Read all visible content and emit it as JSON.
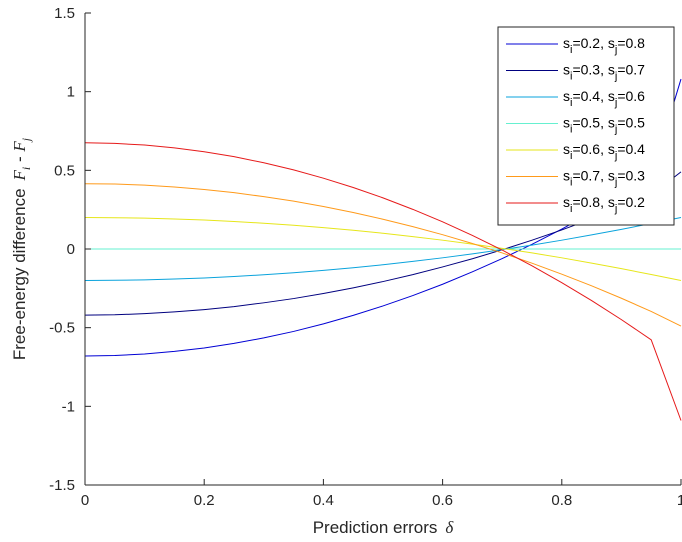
{
  "chart_data": {
    "type": "line",
    "title": "",
    "xlabel": "Prediction errors",
    "xlabel_symbol": "δ",
    "ylabel": "Free-energy difference",
    "ylabel_symbol_i": "F",
    "ylabel_sub_i": "i",
    "ylabel_minus": " - ",
    "ylabel_symbol_j": "F",
    "ylabel_sub_j": "j",
    "xlim": [
      0,
      1
    ],
    "ylim": [
      -1.5,
      1.5
    ],
    "xticks": [
      {
        "value": 0,
        "label": "0"
      },
      {
        "value": 0.2,
        "label": "0.2"
      },
      {
        "value": 0.4,
        "label": "0.4"
      },
      {
        "value": 0.6,
        "label": "0.6"
      },
      {
        "value": 0.8,
        "label": "0.8"
      },
      {
        "value": 1,
        "label": "1"
      }
    ],
    "yticks": [
      {
        "value": -1.5,
        "label": "-1.5"
      },
      {
        "value": -1,
        "label": "-1"
      },
      {
        "value": -0.5,
        "label": "-0.5"
      },
      {
        "value": 0,
        "label": "0"
      },
      {
        "value": 0.5,
        "label": "0.5"
      },
      {
        "value": 1,
        "label": "1"
      },
      {
        "value": 1.5,
        "label": "1.5"
      }
    ],
    "grid": false,
    "legend_position": "top-right",
    "x": [
      0,
      0.05,
      0.1,
      0.15,
      0.2,
      0.25,
      0.3,
      0.35,
      0.4,
      0.45,
      0.5,
      0.55,
      0.6,
      0.65,
      0.7,
      0.75,
      0.8,
      0.85,
      0.9,
      0.95,
      1
    ],
    "series": [
      {
        "name_parts": [
          "s",
          "i",
          "=0.2, s",
          "j",
          "=0.8"
        ],
        "color": "#0000d4",
        "values": [
          -0.68,
          -0.677,
          -0.667,
          -0.651,
          -0.629,
          -0.6,
          -0.565,
          -0.524,
          -0.476,
          -0.422,
          -0.362,
          -0.296,
          -0.224,
          -0.145,
          -0.061,
          0.03,
          0.127,
          0.23,
          0.339,
          0.455,
          1.08
        ]
      },
      {
        "name_parts": [
          "s",
          "i",
          "=0.3, s",
          "j",
          "=0.7"
        ],
        "color": "#00007f",
        "values": [
          -0.42,
          -0.418,
          -0.411,
          -0.4,
          -0.385,
          -0.366,
          -0.342,
          -0.315,
          -0.283,
          -0.247,
          -0.207,
          -0.163,
          -0.114,
          -0.062,
          -0.005,
          0.056,
          0.121,
          0.191,
          0.265,
          0.344,
          0.49
        ]
      },
      {
        "name_parts": [
          "s",
          "i",
          "=0.4, s",
          "j",
          "=0.6"
        ],
        "color": "#0aa3dc",
        "values": [
          -0.2,
          -0.199,
          -0.196,
          -0.191,
          -0.184,
          -0.175,
          -0.164,
          -0.151,
          -0.136,
          -0.119,
          -0.1,
          -0.079,
          -0.056,
          -0.031,
          -0.004,
          0.025,
          0.056,
          0.09,
          0.125,
          0.162,
          0.2
        ]
      },
      {
        "name_parts": [
          "s",
          "i",
          "=0.5, s",
          "j",
          "=0.5"
        ],
        "color": "#66f0d0",
        "values": [
          0,
          0,
          0,
          0,
          0,
          0,
          0,
          0,
          0,
          0,
          0,
          0,
          0,
          0,
          0,
          0,
          0,
          0,
          0,
          0,
          0
        ]
      },
      {
        "name_parts": [
          "s",
          "i",
          "=0.6, s",
          "j",
          "=0.4"
        ],
        "color": "#e6e61a",
        "values": [
          0.2,
          0.199,
          0.196,
          0.191,
          0.184,
          0.175,
          0.164,
          0.151,
          0.136,
          0.119,
          0.1,
          0.079,
          0.056,
          0.031,
          0.004,
          -0.025,
          -0.056,
          -0.09,
          -0.125,
          -0.162,
          -0.2
        ]
      },
      {
        "name_parts": [
          "s",
          "i",
          "=0.7, s",
          "j",
          "=0.3"
        ],
        "color": "#ff9a1a",
        "values": [
          0.415,
          0.413,
          0.406,
          0.394,
          0.378,
          0.358,
          0.333,
          0.304,
          0.27,
          0.232,
          0.189,
          0.142,
          0.091,
          0.035,
          -0.025,
          -0.09,
          -0.16,
          -0.234,
          -0.313,
          -0.397,
          -0.49
        ]
      },
      {
        "name_parts": [
          "s",
          "i",
          "=0.8, s",
          "j",
          "=0.2"
        ],
        "color": "#e61a1a",
        "values": [
          0.675,
          0.671,
          0.661,
          0.643,
          0.618,
          0.587,
          0.548,
          0.503,
          0.45,
          0.391,
          0.325,
          0.252,
          0.173,
          0.086,
          -0.007,
          -0.107,
          -0.214,
          -0.328,
          -0.449,
          -0.577,
          -1.09
        ]
      }
    ]
  }
}
